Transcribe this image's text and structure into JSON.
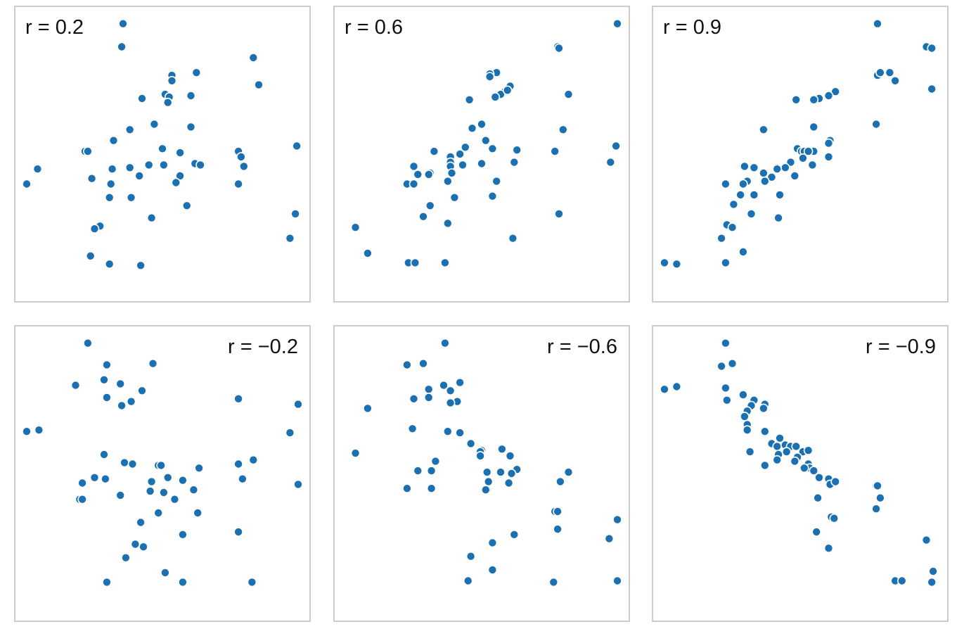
{
  "chart_data": [
    {
      "type": "scatter",
      "title": "r = 0.2",
      "xlim": [
        0,
        100
      ],
      "ylim": [
        0,
        100
      ],
      "grid": false,
      "label_position": "top-left",
      "marker_color": "#1a70b0",
      "points": [
        {
          "x": 35.5,
          "y": 98
        },
        {
          "x": 35,
          "y": 89.5
        },
        {
          "x": 83.5,
          "y": 85.5
        },
        {
          "x": 62.5,
          "y": 80
        },
        {
          "x": 53.5,
          "y": 79
        },
        {
          "x": 53.5,
          "y": 77
        },
        {
          "x": 85.5,
          "y": 75.5
        },
        {
          "x": 51,
          "y": 72
        },
        {
          "x": 52.5,
          "y": 71
        },
        {
          "x": 60.5,
          "y": 71.5
        },
        {
          "x": 42.5,
          "y": 70.5
        },
        {
          "x": 52,
          "y": 69
        },
        {
          "x": 47,
          "y": 61
        },
        {
          "x": 60.5,
          "y": 60
        },
        {
          "x": 38,
          "y": 59
        },
        {
          "x": 32,
          "y": 55
        },
        {
          "x": 50,
          "y": 52
        },
        {
          "x": 99.5,
          "y": 53
        },
        {
          "x": 21.5,
          "y": 51
        },
        {
          "x": 22.5,
          "y": 51
        },
        {
          "x": 78,
          "y": 51
        },
        {
          "x": 56.5,
          "y": 50.5
        },
        {
          "x": 79,
          "y": 49
        },
        {
          "x": 62,
          "y": 46.5
        },
        {
          "x": 64,
          "y": 46
        },
        {
          "x": 45,
          "y": 46
        },
        {
          "x": 50.5,
          "y": 46
        },
        {
          "x": 80,
          "y": 45.5
        },
        {
          "x": 4,
          "y": 44.5
        },
        {
          "x": 31.5,
          "y": 44.5
        },
        {
          "x": 38,
          "y": 45
        },
        {
          "x": 41.5,
          "y": 42
        },
        {
          "x": 56.5,
          "y": 42
        },
        {
          "x": 24,
          "y": 41
        },
        {
          "x": 55,
          "y": 39.5
        },
        {
          "x": 31,
          "y": 39
        },
        {
          "x": 78,
          "y": 39
        },
        {
          "x": 0,
          "y": 39
        },
        {
          "x": 30.5,
          "y": 34
        },
        {
          "x": 38.5,
          "y": 34
        },
        {
          "x": 59,
          "y": 31
        },
        {
          "x": 99,
          "y": 28
        },
        {
          "x": 46,
          "y": 26.5
        },
        {
          "x": 27,
          "y": 23.5
        },
        {
          "x": 25,
          "y": 22.5
        },
        {
          "x": 97,
          "y": 19
        },
        {
          "x": 23.5,
          "y": 12.5
        },
        {
          "x": 30.5,
          "y": 9.5
        },
        {
          "x": 42,
          "y": 9
        }
      ]
    },
    {
      "type": "scatter",
      "title": "r = 0.6",
      "xlim": [
        0,
        100
      ],
      "ylim": [
        0,
        100
      ],
      "grid": false,
      "label_position": "top-left",
      "marker_color": "#1a70b0",
      "points": [
        {
          "x": 100,
          "y": 98
        },
        {
          "x": 78,
          "y": 89.5
        },
        {
          "x": 78.5,
          "y": 89
        },
        {
          "x": 55.5,
          "y": 80
        },
        {
          "x": 53,
          "y": 79.5
        },
        {
          "x": 53,
          "y": 78.5
        },
        {
          "x": 60.5,
          "y": 75
        },
        {
          "x": 58.5,
          "y": 73
        },
        {
          "x": 57,
          "y": 72
        },
        {
          "x": 59.5,
          "y": 73.5
        },
        {
          "x": 55,
          "y": 71
        },
        {
          "x": 82,
          "y": 72
        },
        {
          "x": 45.5,
          "y": 70
        },
        {
          "x": 50,
          "y": 61
        },
        {
          "x": 46.5,
          "y": 59.5
        },
        {
          "x": 80,
          "y": 59
        },
        {
          "x": 51.5,
          "y": 55
        },
        {
          "x": 99.5,
          "y": 53
        },
        {
          "x": 44,
          "y": 52.5
        },
        {
          "x": 54,
          "y": 52
        },
        {
          "x": 63,
          "y": 51.5
        },
        {
          "x": 77,
          "y": 51
        },
        {
          "x": 32.5,
          "y": 51
        },
        {
          "x": 42,
          "y": 50
        },
        {
          "x": 38.5,
          "y": 49
        },
        {
          "x": 97.5,
          "y": 47
        },
        {
          "x": 43,
          "y": 46
        },
        {
          "x": 62,
          "y": 47
        },
        {
          "x": 38.5,
          "y": 47
        },
        {
          "x": 38.5,
          "y": 45.5
        },
        {
          "x": 50,
          "y": 46.5
        },
        {
          "x": 25,
          "y": 45.5
        },
        {
          "x": 39,
          "y": 43
        },
        {
          "x": 31,
          "y": 43
        },
        {
          "x": 26.5,
          "y": 42.5
        },
        {
          "x": 30.5,
          "y": 42.5
        },
        {
          "x": 37.5,
          "y": 40
        },
        {
          "x": 55.5,
          "y": 40
        },
        {
          "x": 22.5,
          "y": 39
        },
        {
          "x": 25,
          "y": 39
        },
        {
          "x": 40,
          "y": 34
        },
        {
          "x": 54,
          "y": 34.5
        },
        {
          "x": 31,
          "y": 31
        },
        {
          "x": 78.5,
          "y": 28
        },
        {
          "x": 28.5,
          "y": 27
        },
        {
          "x": 37.5,
          "y": 24.5
        },
        {
          "x": 3.5,
          "y": 23
        },
        {
          "x": 61.5,
          "y": 19
        },
        {
          "x": 8,
          "y": 13.5
        },
        {
          "x": 23,
          "y": 10
        },
        {
          "x": 25.5,
          "y": 10
        },
        {
          "x": 36.5,
          "y": 10
        }
      ]
    },
    {
      "type": "scatter",
      "title": "r = 0.9",
      "xlim": [
        0,
        100
      ],
      "ylim": [
        0,
        100
      ],
      "grid": false,
      "label_position": "top-left",
      "marker_color": "#1a70b0",
      "points": [
        {
          "x": 78.5,
          "y": 98
        },
        {
          "x": 96.5,
          "y": 89.5
        },
        {
          "x": 98.5,
          "y": 89
        },
        {
          "x": 83,
          "y": 80
        },
        {
          "x": 78.5,
          "y": 79
        },
        {
          "x": 79.5,
          "y": 80
        },
        {
          "x": 85,
          "y": 77
        },
        {
          "x": 98.5,
          "y": 74
        },
        {
          "x": 63,
          "y": 73
        },
        {
          "x": 60.5,
          "y": 71.5
        },
        {
          "x": 57,
          "y": 70.5
        },
        {
          "x": 55,
          "y": 70
        },
        {
          "x": 48.5,
          "y": 70
        },
        {
          "x": 78,
          "y": 61
        },
        {
          "x": 55,
          "y": 60
        },
        {
          "x": 36.5,
          "y": 59
        },
        {
          "x": 61,
          "y": 55
        },
        {
          "x": 60.5,
          "y": 54
        },
        {
          "x": 49,
          "y": 52
        },
        {
          "x": 50.5,
          "y": 51
        },
        {
          "x": 51.5,
          "y": 51
        },
        {
          "x": 55,
          "y": 51
        },
        {
          "x": 53,
          "y": 51
        },
        {
          "x": 60.5,
          "y": 49
        },
        {
          "x": 51,
          "y": 48.5
        },
        {
          "x": 46.5,
          "y": 47
        },
        {
          "x": 54.5,
          "y": 46
        },
        {
          "x": 44.5,
          "y": 45
        },
        {
          "x": 33,
          "y": 45
        },
        {
          "x": 29.5,
          "y": 45.5
        },
        {
          "x": 41.5,
          "y": 45
        },
        {
          "x": 41.5,
          "y": 44.5
        },
        {
          "x": 36.5,
          "y": 43
        },
        {
          "x": 48,
          "y": 42
        },
        {
          "x": 39.5,
          "y": 41.5
        },
        {
          "x": 30.5,
          "y": 40
        },
        {
          "x": 37,
          "y": 40
        },
        {
          "x": 22.5,
          "y": 39
        },
        {
          "x": 29,
          "y": 39
        },
        {
          "x": 33,
          "y": 35
        },
        {
          "x": 28,
          "y": 35
        },
        {
          "x": 42.5,
          "y": 35
        },
        {
          "x": 25.5,
          "y": 31.5
        },
        {
          "x": 32,
          "y": 28
        },
        {
          "x": 42,
          "y": 26.5
        },
        {
          "x": 23,
          "y": 24
        },
        {
          "x": 25,
          "y": 23
        },
        {
          "x": 21,
          "y": 19
        },
        {
          "x": 29,
          "y": 14
        },
        {
          "x": 22.5,
          "y": 10
        },
        {
          "x": 0,
          "y": 10
        },
        {
          "x": 4.5,
          "y": 9.5
        }
      ]
    },
    {
      "type": "scatter",
      "title": "r = −0.2",
      "xlim": [
        0,
        100
      ],
      "ylim": [
        0,
        100
      ],
      "grid": false,
      "label_position": "top-right",
      "marker_color": "#1a70b0",
      "points": [
        {
          "x": 22.5,
          "y": 98
        },
        {
          "x": 46.5,
          "y": 90.5
        },
        {
          "x": 29.5,
          "y": 90
        },
        {
          "x": 28.5,
          "y": 84.5
        },
        {
          "x": 34.5,
          "y": 83
        },
        {
          "x": 18,
          "y": 82.5
        },
        {
          "x": 42.5,
          "y": 80.5
        },
        {
          "x": 29.5,
          "y": 78
        },
        {
          "x": 38.5,
          "y": 76.5
        },
        {
          "x": 35,
          "y": 75
        },
        {
          "x": 78,
          "y": 77.5
        },
        {
          "x": 100,
          "y": 75.5
        },
        {
          "x": 4.5,
          "y": 66
        },
        {
          "x": 0,
          "y": 65.5
        },
        {
          "x": 97,
          "y": 65
        },
        {
          "x": 28.5,
          "y": 57
        },
        {
          "x": 36,
          "y": 54
        },
        {
          "x": 39,
          "y": 53.5
        },
        {
          "x": 48.5,
          "y": 53
        },
        {
          "x": 49.5,
          "y": 53
        },
        {
          "x": 83.5,
          "y": 55
        },
        {
          "x": 78,
          "y": 53.5
        },
        {
          "x": 63.5,
          "y": 52
        },
        {
          "x": 25,
          "y": 48.5
        },
        {
          "x": 29,
          "y": 48
        },
        {
          "x": 52,
          "y": 48.5
        },
        {
          "x": 46,
          "y": 47
        },
        {
          "x": 57.5,
          "y": 47.5
        },
        {
          "x": 20.5,
          "y": 46.5
        },
        {
          "x": 79.5,
          "y": 48
        },
        {
          "x": 100,
          "y": 46
        },
        {
          "x": 61.5,
          "y": 44
        },
        {
          "x": 45.5,
          "y": 43.5
        },
        {
          "x": 34.5,
          "y": 42
        },
        {
          "x": 50.5,
          "y": 43
        },
        {
          "x": 19.5,
          "y": 40.5
        },
        {
          "x": 20.5,
          "y": 40.5
        },
        {
          "x": 54.5,
          "y": 40.5
        },
        {
          "x": 48.5,
          "y": 35.5
        },
        {
          "x": 63,
          "y": 35.5
        },
        {
          "x": 42,
          "y": 32
        },
        {
          "x": 78,
          "y": 28.5
        },
        {
          "x": 57.5,
          "y": 27.5
        },
        {
          "x": 40,
          "y": 24
        },
        {
          "x": 43,
          "y": 23
        },
        {
          "x": 36.5,
          "y": 19
        },
        {
          "x": 51,
          "y": 13.5
        },
        {
          "x": 29.5,
          "y": 10
        },
        {
          "x": 57.5,
          "y": 10
        },
        {
          "x": 83,
          "y": 10
        }
      ]
    },
    {
      "type": "scatter",
      "title": "r = −0.6",
      "xlim": [
        0,
        100
      ],
      "ylim": [
        0,
        100
      ],
      "grid": false,
      "label_position": "top-right",
      "marker_color": "#1a70b0",
      "points": [
        {
          "x": 36.5,
          "y": 98
        },
        {
          "x": 22.5,
          "y": 90
        },
        {
          "x": 28.5,
          "y": 90.5
        },
        {
          "x": 42,
          "y": 83.5
        },
        {
          "x": 36,
          "y": 82.5
        },
        {
          "x": 30.5,
          "y": 81
        },
        {
          "x": 38.5,
          "y": 80.5
        },
        {
          "x": 30.5,
          "y": 78
        },
        {
          "x": 25,
          "y": 77.5
        },
        {
          "x": 41,
          "y": 76.5
        },
        {
          "x": 38.5,
          "y": 76
        },
        {
          "x": 8,
          "y": 74
        },
        {
          "x": 24.5,
          "y": 66.5
        },
        {
          "x": 37.5,
          "y": 65.5
        },
        {
          "x": 42,
          "y": 65
        },
        {
          "x": 46,
          "y": 61
        },
        {
          "x": 50,
          "y": 58.5
        },
        {
          "x": 49.5,
          "y": 58
        },
        {
          "x": 57.5,
          "y": 59
        },
        {
          "x": 3.5,
          "y": 57.5
        },
        {
          "x": 60.5,
          "y": 56.5
        },
        {
          "x": 49.5,
          "y": 56.5
        },
        {
          "x": 63,
          "y": 51.5
        },
        {
          "x": 26.5,
          "y": 51
        },
        {
          "x": 31.5,
          "y": 51
        },
        {
          "x": 33,
          "y": 54.5
        },
        {
          "x": 52,
          "y": 50.5
        },
        {
          "x": 57,
          "y": 50.5
        },
        {
          "x": 61,
          "y": 50
        },
        {
          "x": 82,
          "y": 50.5
        },
        {
          "x": 52.5,
          "y": 47
        },
        {
          "x": 60,
          "y": 46.5
        },
        {
          "x": 79,
          "y": 47
        },
        {
          "x": 52,
          "y": 44
        },
        {
          "x": 22.5,
          "y": 44.5
        },
        {
          "x": 31.5,
          "y": 44.5
        },
        {
          "x": 51.5,
          "y": 44
        },
        {
          "x": 77,
          "y": 36
        },
        {
          "x": 78,
          "y": 36
        },
        {
          "x": 100,
          "y": 33
        },
        {
          "x": 78,
          "y": 29.5
        },
        {
          "x": 62,
          "y": 27.5
        },
        {
          "x": 97,
          "y": 26
        },
        {
          "x": 54,
          "y": 24.5
        },
        {
          "x": 46,
          "y": 19.5
        },
        {
          "x": 54,
          "y": 14.5
        },
        {
          "x": 45,
          "y": 10.5
        },
        {
          "x": 76.5,
          "y": 10
        },
        {
          "x": 100,
          "y": 10.5
        }
      ]
    },
    {
      "type": "scatter",
      "title": "r = −0.9",
      "xlim": [
        0,
        100
      ],
      "ylim": [
        0,
        100
      ],
      "grid": false,
      "label_position": "top-right",
      "marker_color": "#1a70b0",
      "points": [
        {
          "x": 22.5,
          "y": 98
        },
        {
          "x": 25,
          "y": 90.5
        },
        {
          "x": 21,
          "y": 89.5
        },
        {
          "x": 4.5,
          "y": 82
        },
        {
          "x": 0,
          "y": 81
        },
        {
          "x": 22.5,
          "y": 81.5
        },
        {
          "x": 29,
          "y": 79
        },
        {
          "x": 23,
          "y": 77
        },
        {
          "x": 33,
          "y": 77
        },
        {
          "x": 32,
          "y": 75
        },
        {
          "x": 37,
          "y": 75.5
        },
        {
          "x": 36.5,
          "y": 74
        },
        {
          "x": 30.5,
          "y": 73
        },
        {
          "x": 29.5,
          "y": 71
        },
        {
          "x": 30.5,
          "y": 68
        },
        {
          "x": 30.5,
          "y": 66
        },
        {
          "x": 37,
          "y": 65.5
        },
        {
          "x": 42.5,
          "y": 63
        },
        {
          "x": 39.5,
          "y": 61
        },
        {
          "x": 41.5,
          "y": 60
        },
        {
          "x": 44.5,
          "y": 60.5
        },
        {
          "x": 46.5,
          "y": 60
        },
        {
          "x": 48.5,
          "y": 60
        },
        {
          "x": 51,
          "y": 58
        },
        {
          "x": 53,
          "y": 58.5
        },
        {
          "x": 31.5,
          "y": 58
        },
        {
          "x": 45,
          "y": 58
        },
        {
          "x": 42,
          "y": 57
        },
        {
          "x": 49,
          "y": 56
        },
        {
          "x": 41.5,
          "y": 55
        },
        {
          "x": 48,
          "y": 54.5
        },
        {
          "x": 53,
          "y": 53.5
        },
        {
          "x": 53.5,
          "y": 52
        },
        {
          "x": 55,
          "y": 51
        },
        {
          "x": 37,
          "y": 53
        },
        {
          "x": 51.5,
          "y": 52
        },
        {
          "x": 57,
          "y": 48.5
        },
        {
          "x": 60.5,
          "y": 48
        },
        {
          "x": 61,
          "y": 46
        },
        {
          "x": 63,
          "y": 47
        },
        {
          "x": 78,
          "y": 45.5
        },
        {
          "x": 78.5,
          "y": 45.5
        },
        {
          "x": 56.5,
          "y": 41
        },
        {
          "x": 79.5,
          "y": 41
        },
        {
          "x": 78,
          "y": 37
        },
        {
          "x": 61.5,
          "y": 34
        },
        {
          "x": 62.5,
          "y": 33.5
        },
        {
          "x": 56,
          "y": 28.5
        },
        {
          "x": 60.5,
          "y": 22.5
        },
        {
          "x": 96.5,
          "y": 25.5
        },
        {
          "x": 99,
          "y": 14
        },
        {
          "x": 85,
          "y": 10.5
        },
        {
          "x": 87.5,
          "y": 10.5
        },
        {
          "x": 98.5,
          "y": 10
        }
      ]
    }
  ]
}
